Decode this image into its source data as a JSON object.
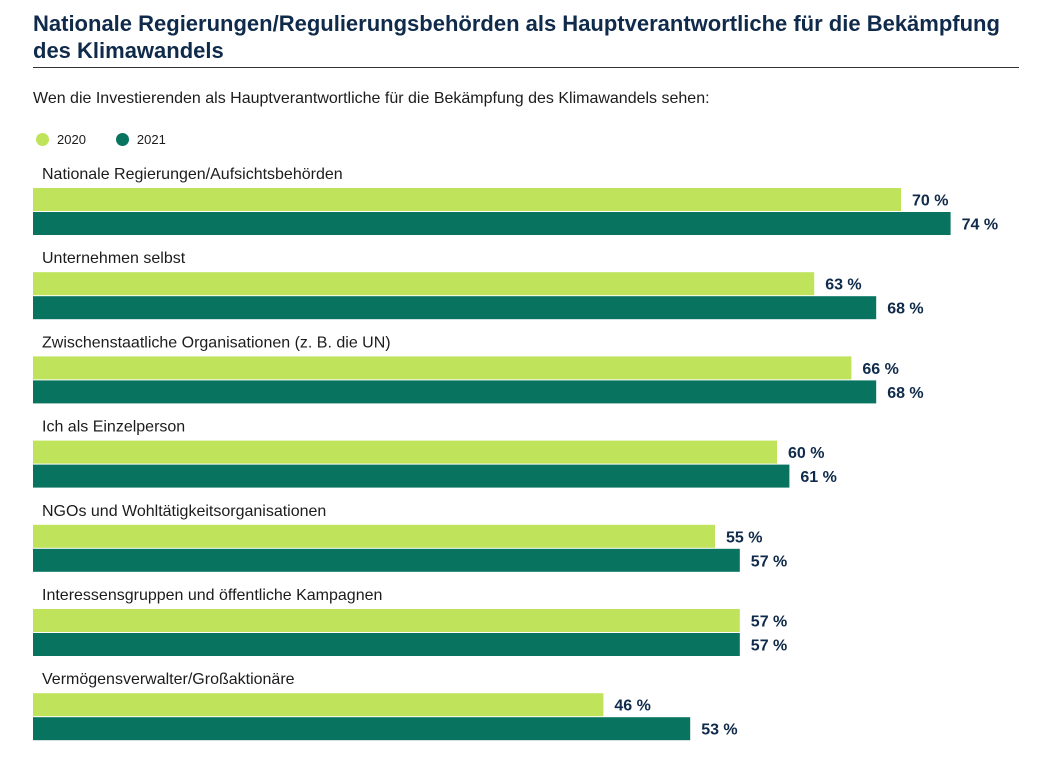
{
  "chart_data": {
    "type": "bar",
    "orientation": "horizontal",
    "title": "Nationale Regierungen/Regulierungsbehörden als Hauptverantwortliche für die Bekämpfung des Klimawandels",
    "subtitle": "Wen die Investierenden als Hauptverantwortliche für die Bekämpfung des Klimawandels sehen:",
    "legend_position": "top-left",
    "grid": false,
    "xlim": [
      0,
      100
    ],
    "value_suffix": " %",
    "categories": [
      "Nationale Regierungen/Aufsichtsbehörden",
      "Unternehmen selbst",
      "Zwischenstaatliche Organisationen (z. B. die UN)",
      "Ich als Einzelperson",
      "NGOs und Wohltätigkeitsorganisationen",
      "Interessensgruppen und öffentliche Kampagnen",
      "Vermögensverwalter/Großaktionäre"
    ],
    "series": [
      {
        "name": "2020",
        "color": "#bfe35a",
        "values": [
          70,
          63,
          66,
          60,
          55,
          57,
          46
        ]
      },
      {
        "name": "2021",
        "color": "#087460",
        "values": [
          74,
          68,
          68,
          61,
          57,
          57,
          53
        ]
      }
    ]
  },
  "colors": {
    "title": "#0f2a4a",
    "value_label": "#0f2a4a",
    "category_label": "#1c1c1c"
  }
}
